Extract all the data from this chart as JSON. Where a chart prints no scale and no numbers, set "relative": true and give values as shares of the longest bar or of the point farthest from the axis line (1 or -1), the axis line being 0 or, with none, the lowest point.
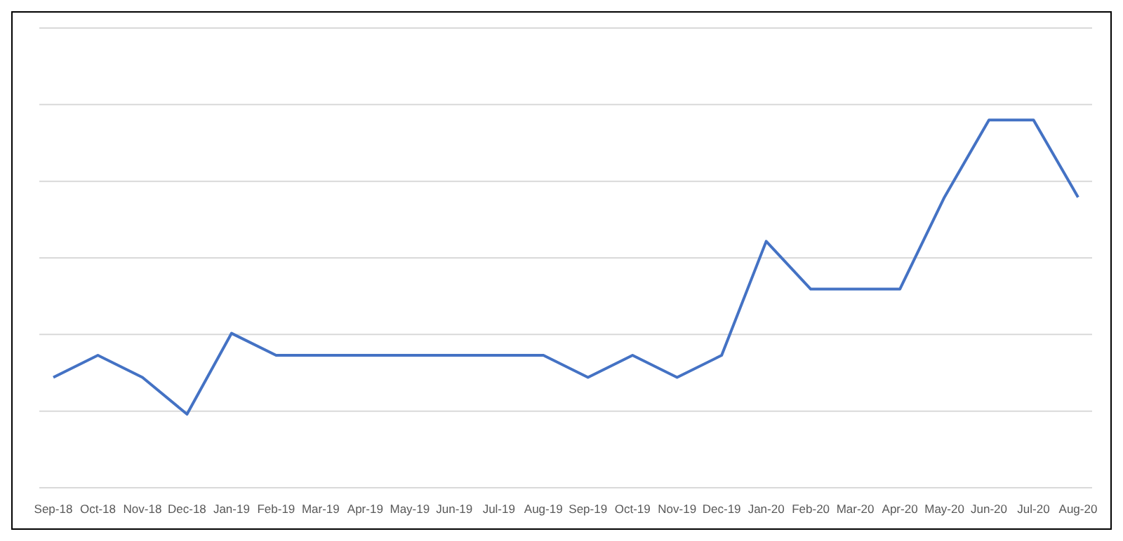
{
  "chart_data": {
    "type": "line",
    "relative": true,
    "grid": "y",
    "marker": "none",
    "line_style": "solid",
    "categories": [
      "Sep-18",
      "Oct-18",
      "Nov-18",
      "Dec-18",
      "Jan-19",
      "Feb-19",
      "Mar-19",
      "Apr-19",
      "May-19",
      "Jun-19",
      "Jul-19",
      "Aug-19",
      "Sep-19",
      "Oct-19",
      "Nov-19",
      "Dec-19",
      "Jan-20",
      "Feb-20",
      "Mar-20",
      "Apr-20",
      "May-20",
      "Jun-20",
      "Jul-20",
      "Aug-20"
    ],
    "series": [
      {
        "color": "#4472c4",
        "values": [
          0.3,
          0.36,
          0.3,
          0.2,
          0.42,
          0.36,
          0.36,
          0.36,
          0.36,
          0.36,
          0.36,
          0.36,
          0.3,
          0.36,
          0.3,
          0.36,
          0.67,
          0.54,
          0.54,
          0.54,
          0.79,
          1,
          1,
          0.79
        ]
      }
    ]
  }
}
